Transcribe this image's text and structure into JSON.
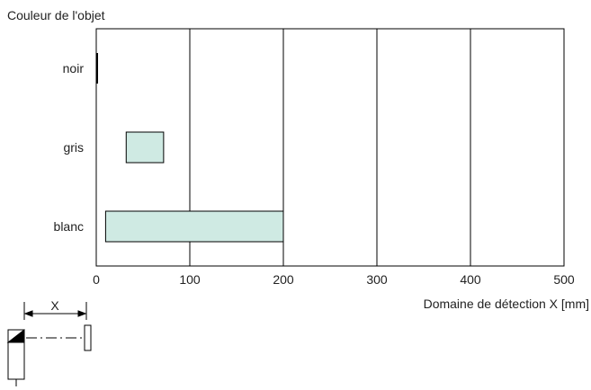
{
  "chart_data": {
    "type": "bar",
    "orientation": "horizontal-range",
    "ylabel": "Couleur de l'objet",
    "xlabel": "Domaine de détection X [mm]",
    "xlim": [
      0,
      500
    ],
    "xticks": [
      0,
      100,
      200,
      300,
      400,
      500
    ],
    "grid": true,
    "categories": [
      "noir",
      "gris",
      "blanc"
    ],
    "ranges": [
      {
        "category": "noir",
        "start": 0,
        "end": 1
      },
      {
        "category": "gris",
        "start": 32,
        "end": 72
      },
      {
        "category": "blanc",
        "start": 10,
        "end": 200
      }
    ],
    "bar_fill": "#cfeae3",
    "diagram_label": "X"
  }
}
